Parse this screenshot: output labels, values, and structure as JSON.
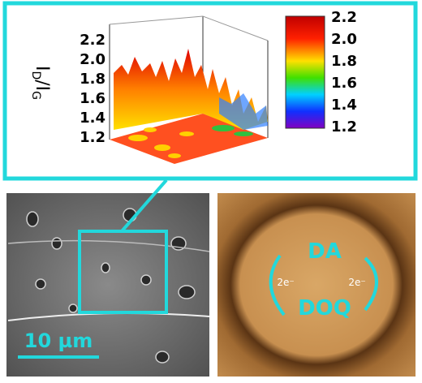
{
  "plot": {
    "axis_label": {
      "base1": "I",
      "sub1": "D",
      "sep": "/",
      "base2": "I",
      "sub2": "G"
    },
    "z_ticks": [
      "2.2",
      "2.0",
      "1.8",
      "1.6",
      "1.4",
      "1.2"
    ],
    "colorbar_ticks": [
      "2.2",
      "2.0",
      "1.8",
      "1.6",
      "1.4",
      "1.2"
    ]
  },
  "sem": {
    "scale_bar": "10 µm"
  },
  "afm": {
    "top_label": "DA",
    "bottom_label": "DOQ",
    "left_electrons": "2e⁻",
    "right_electrons": "2e⁻"
  }
}
